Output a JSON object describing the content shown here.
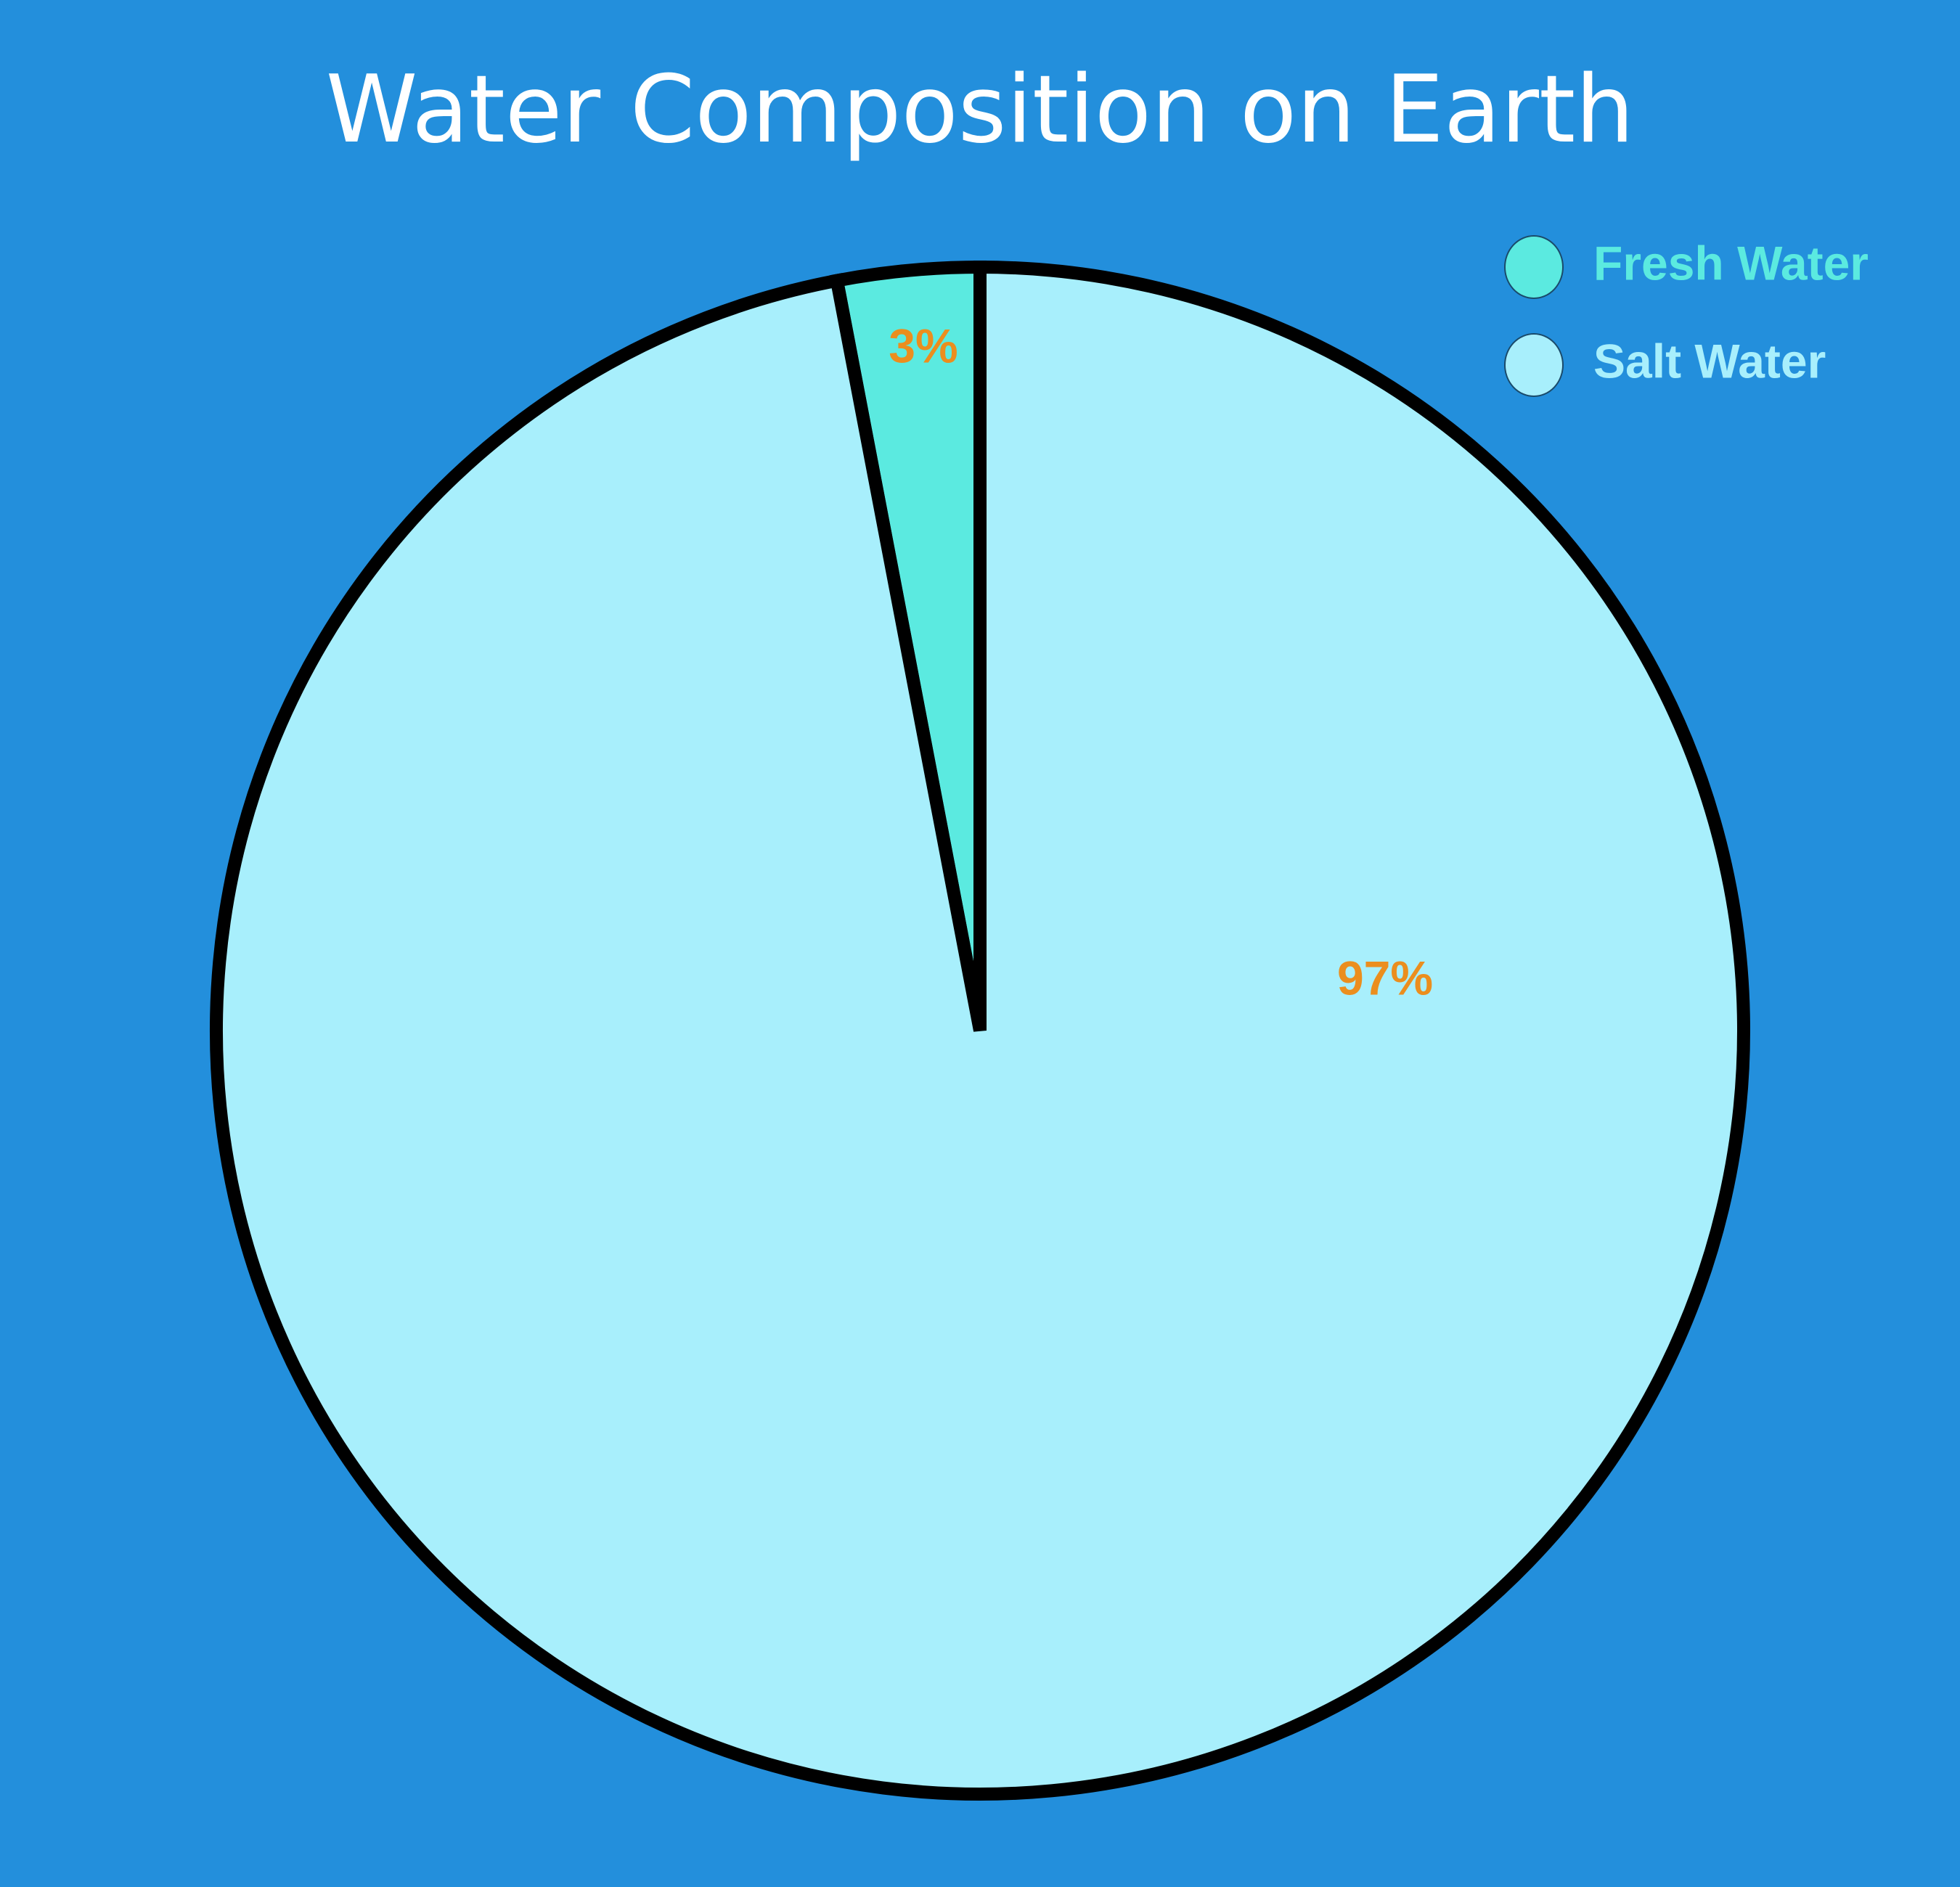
{
  "chart_data": {
    "type": "pie",
    "title": "Water Composition on Earth",
    "slices": [
      {
        "label": "Fresh Water",
        "value": 3,
        "data_label": "3%",
        "color": "#5BEAE0"
      },
      {
        "label": "Salt Water",
        "value": 97,
        "data_label": "97%",
        "color": "#A8EFFC"
      }
    ],
    "legend_position": "top-right",
    "background_color": "#238FDC",
    "outline_color": "#000000",
    "data_label_color": "#EB8E1E"
  }
}
